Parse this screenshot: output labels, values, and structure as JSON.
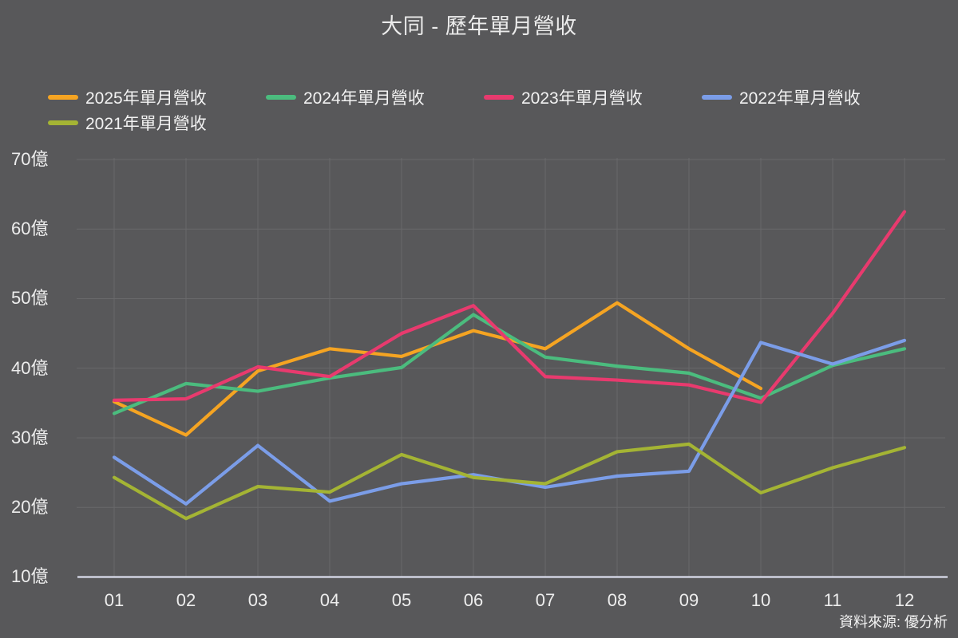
{
  "page": {
    "title": "大同 - 歷年單月營收",
    "source_note": "資料來源: 優分析"
  },
  "colors": {
    "background": "#58585A",
    "grid": "#69696B",
    "axis_line": "#DCDEEE",
    "title_text": "#EBEBEB",
    "label_text": "#EDEDED"
  },
  "chart_data": {
    "type": "line",
    "title": "大同 - 歷年單月營收",
    "x_categories": [
      "01",
      "02",
      "03",
      "04",
      "05",
      "06",
      "07",
      "08",
      "09",
      "10",
      "11",
      "12"
    ],
    "xlabel": "",
    "ylabel": "",
    "y_unit": "億",
    "ylim": [
      10,
      70
    ],
    "y_ticks": [
      70,
      60,
      50,
      40,
      30,
      20,
      10
    ],
    "y_tick_labels": [
      "70億",
      "60億",
      "50億",
      "40億",
      "30億",
      "20億",
      "10億"
    ],
    "grid": true,
    "legend_position": "top-left",
    "series": [
      {
        "name": "2025年單月營收",
        "color": "#F5A422",
        "values": [
          35.2,
          30.4,
          39.6,
          42.8,
          41.7,
          45.4,
          42.8,
          49.4,
          42.8,
          37.1
        ]
      },
      {
        "name": "2024年單月營收",
        "color": "#4BBC7E",
        "values": [
          33.5,
          37.8,
          36.7,
          38.6,
          40.1,
          47.7,
          41.6,
          40.3,
          39.3,
          35.7,
          40.4,
          42.8
        ]
      },
      {
        "name": "2023年單月營收",
        "color": "#E83A6E",
        "values": [
          35.4,
          35.6,
          40.2,
          38.8,
          45.0,
          49.0,
          38.8,
          38.3,
          37.6,
          35.1,
          47.9,
          62.5
        ]
      },
      {
        "name": "2022年單月營收",
        "color": "#7B9DE8",
        "values": [
          27.2,
          20.5,
          28.9,
          20.9,
          23.4,
          24.7,
          22.9,
          24.5,
          25.2,
          43.7,
          40.6,
          44.0
        ]
      },
      {
        "name": "2021年單月營收",
        "color": "#A4B434",
        "values": [
          24.3,
          18.4,
          23.0,
          22.2,
          27.6,
          24.3,
          23.4,
          28.0,
          29.1,
          22.1,
          25.7,
          28.6
        ]
      }
    ]
  }
}
